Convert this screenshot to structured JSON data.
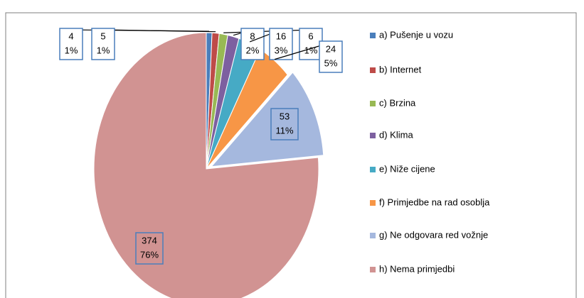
{
  "chart_data": {
    "type": "pie",
    "categories": [
      "a) Pušenje u vozu",
      "b) Internet",
      "c) Brzina",
      "d)  Klima",
      "e)  Niže cijene",
      "f)  Primjedbe na rad osoblja",
      "g) Ne odgovara red vožnje",
      "h)  Nema primjedbi"
    ],
    "values": [
      4,
      5,
      6,
      8,
      16,
      24,
      53,
      374
    ],
    "percent_labels": [
      "1%",
      "1%",
      "1%",
      "2%",
      "3%",
      "5%",
      "11%",
      "76%"
    ],
    "colors": [
      "#4a7ebb",
      "#be4b48",
      "#98b954",
      "#7d60a0",
      "#46aac5",
      "#f79646",
      "#a5b8de",
      "#d19392"
    ],
    "legend": "right"
  }
}
